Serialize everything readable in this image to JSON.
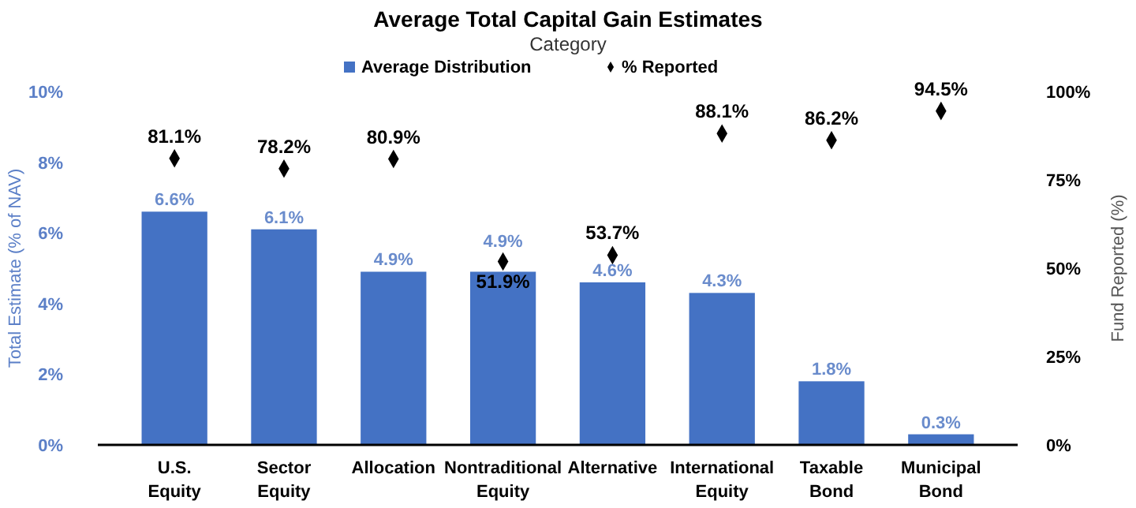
{
  "chart_data": {
    "type": "bar",
    "title": "Average Total Capital Gain Estimates",
    "subtitle": "Category",
    "ylabel": "Total Estimate (% of NAV)",
    "y2label": "Fund Reported (%)",
    "categories": [
      "U.S. Equity",
      "Sector Equity",
      "Allocation",
      "Nontraditional Equity",
      "Alternative",
      "International Equity",
      "Taxable Bond",
      "Municipal Bond"
    ],
    "series": [
      {
        "name": "Average Distribution",
        "color": "#4472c4",
        "values": [
          6.6,
          6.1,
          4.9,
          4.9,
          4.6,
          4.3,
          1.8,
          0.3
        ],
        "value_labels": [
          "6.6%",
          "6.1%",
          "4.9%",
          "4.9%",
          "4.6%",
          "4.3%",
          "1.8%",
          "0.3%"
        ]
      },
      {
        "name": "% Reported",
        "type": "scatter",
        "axis": "y2",
        "color": "#000000",
        "marker": "diamond",
        "values": [
          81.1,
          78.2,
          80.9,
          51.9,
          53.7,
          88.1,
          86.2,
          94.5
        ],
        "value_labels": [
          "81.1%",
          "78.2%",
          "80.9%",
          "51.9%",
          "53.7%",
          "88.1%",
          "86.2%",
          "94.5%"
        ]
      }
    ],
    "ylim": [
      0,
      10
    ],
    "yticks": [
      {
        "value": 0,
        "label": "0%"
      },
      {
        "value": 2,
        "label": "2%"
      },
      {
        "value": 4,
        "label": "4%"
      },
      {
        "value": 6,
        "label": "6%"
      },
      {
        "value": 8,
        "label": "8%"
      },
      {
        "value": 10,
        "label": "10%"
      }
    ],
    "y2lim": [
      0,
      100
    ],
    "y2ticks": [
      {
        "value": 0,
        "label": "0%"
      },
      {
        "value": 25,
        "label": "25%"
      },
      {
        "value": 50,
        "label": "50%"
      },
      {
        "value": 75,
        "label": "75%"
      },
      {
        "value": 100,
        "label": "100%"
      }
    ],
    "legend": "top",
    "grid": false
  }
}
